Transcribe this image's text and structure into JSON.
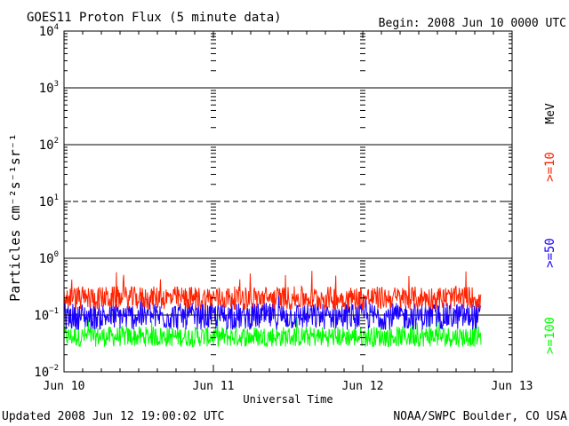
{
  "header": {
    "title": "GOES11 Proton Flux (5 minute data)",
    "begin": "Begin: 2008 Jun 10 0000 UTC"
  },
  "footer": {
    "updated": "Updated 2008 Jun 12 19:00:02 UTC",
    "credit": "NOAA/SWPC Boulder, CO USA"
  },
  "colors": {
    "ge10": "#ff2200",
    "ge50": "#1a00ff",
    "ge100": "#00ff00",
    "axis": "#000000",
    "background": "#ffffff"
  },
  "chart_data": {
    "type": "line",
    "title": "GOES11 Proton Flux (5 minute data)",
    "xlabel": "Universal Time",
    "ylabel": "Particles cm⁻²s⁻¹sr⁻¹",
    "y_scale": "log",
    "ylim": [
      0.01,
      10000
    ],
    "ytick_exponents": [
      -2,
      -1,
      0,
      1,
      2,
      3,
      4
    ],
    "dashed_gridline_exponent": 1,
    "x_ticks": [
      "Jun 10",
      "Jun 11",
      "Jun 12",
      "Jun 13"
    ],
    "xlim_days": [
      0,
      3
    ],
    "data_end_day": 2.79,
    "units_label": "MeV",
    "series": [
      {
        "name": ">=10",
        "color": "#ff2200",
        "baseline": 0.19,
        "min": 0.11,
        "max": 0.62
      },
      {
        "name": ">=50",
        "color": "#1a00ff",
        "baseline": 0.09,
        "min": 0.045,
        "max": 0.33
      },
      {
        "name": ">=100",
        "color": "#00ff00",
        "baseline": 0.04,
        "min": 0.022,
        "max": 0.1
      }
    ]
  }
}
